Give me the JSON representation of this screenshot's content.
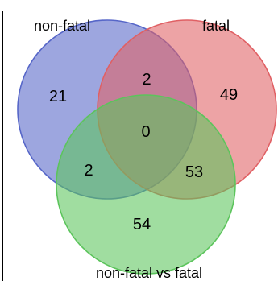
{
  "diagram": {
    "type": "venn-3",
    "sets": [
      {
        "id": "A",
        "label": "non-fatal",
        "color": "#5666c8"
      },
      {
        "id": "B",
        "label": "fatal",
        "color": "#e06064"
      },
      {
        "id": "C",
        "label": "non-fatal vs fatal",
        "color": "#5cc45c"
      }
    ],
    "regions": {
      "only_non_fatal": "21",
      "only_fatal": "49",
      "only_non_fatal_vs_fatal": "54",
      "non_fatal_and_fatal": "2",
      "non_fatal_and_non_fatal_vs_fatal": "2",
      "fatal_and_non_fatal_vs_fatal": "53",
      "all_three": "0"
    }
  }
}
